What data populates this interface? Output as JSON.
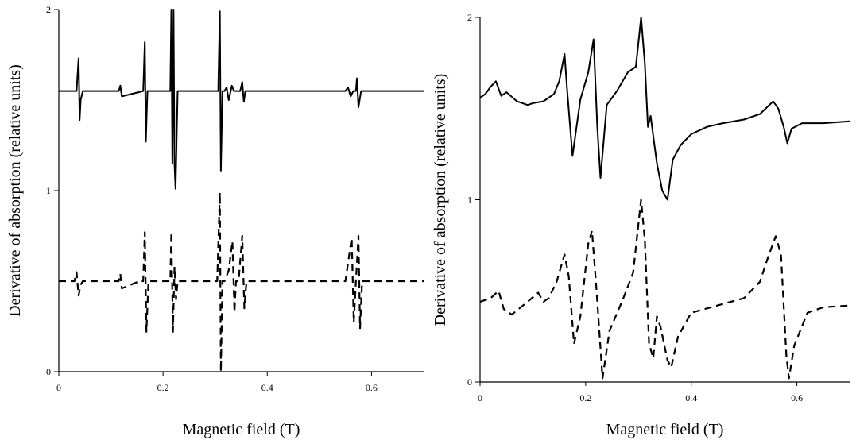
{
  "chart_data": [
    {
      "type": "line",
      "xlabel": "Magnetic field (T)",
      "ylabel": "Derivative of absorption (relative units)",
      "xlim": [
        0,
        0.7
      ],
      "ylim": [
        0,
        2
      ],
      "xticks": [
        "0",
        "0.2",
        "0.4",
        "0.6"
      ],
      "yticks": [
        "0",
        "1",
        "2"
      ],
      "grid": false,
      "series": [
        {
          "style": "solid",
          "x": [
            0,
            0.034,
            0.038,
            0.04,
            0.042,
            0.046,
            0.115,
            0.118,
            0.121,
            0.162,
            0.165,
            0.167,
            0.17,
            0.214,
            0.216,
            0.218,
            0.22,
            0.222,
            0.224,
            0.228,
            0.306,
            0.309,
            0.311,
            0.314,
            0.318,
            0.322,
            0.326,
            0.332,
            0.336,
            0.348,
            0.352,
            0.355,
            0.358,
            0.365,
            0.55,
            0.555,
            0.56,
            0.565,
            0.57,
            0.572,
            0.575,
            0.58,
            0.7
          ],
          "y": [
            1.55,
            1.55,
            1.73,
            1.39,
            1.5,
            1.55,
            1.55,
            1.58,
            1.52,
            1.55,
            1.82,
            1.27,
            1.55,
            1.55,
            2.0,
            1.15,
            2.0,
            1.14,
            1.01,
            1.55,
            1.55,
            1.99,
            1.11,
            1.55,
            1.55,
            1.57,
            1.5,
            1.58,
            1.55,
            1.55,
            1.6,
            1.49,
            1.55,
            1.55,
            1.55,
            1.57,
            1.52,
            1.55,
            1.55,
            1.62,
            1.46,
            1.55,
            1.55
          ]
        },
        {
          "style": "dashed",
          "x": [
            0,
            0.03,
            0.034,
            0.038,
            0.042,
            0.046,
            0.115,
            0.118,
            0.121,
            0.155,
            0.162,
            0.165,
            0.168,
            0.172,
            0.214,
            0.216,
            0.219,
            0.222,
            0.225,
            0.228,
            0.304,
            0.309,
            0.311,
            0.314,
            0.318,
            0.326,
            0.333,
            0.337,
            0.34,
            0.345,
            0.352,
            0.356,
            0.36,
            0.365,
            0.55,
            0.562,
            0.566,
            0.57,
            0.575,
            0.578,
            0.582,
            0.7
          ],
          "y": [
            0.5,
            0.5,
            0.55,
            0.42,
            0.48,
            0.5,
            0.5,
            0.54,
            0.46,
            0.5,
            0.5,
            0.77,
            0.22,
            0.5,
            0.5,
            0.77,
            0.22,
            0.58,
            0.4,
            0.5,
            0.5,
            0.99,
            0.0,
            0.5,
            0.5,
            0.56,
            0.72,
            0.33,
            0.5,
            0.5,
            0.75,
            0.35,
            0.5,
            0.5,
            0.5,
            0.74,
            0.27,
            0.5,
            0.75,
            0.24,
            0.5,
            0.5
          ]
        }
      ]
    },
    {
      "type": "line",
      "xlabel": "Magnetic field (T)",
      "ylabel": "Derivative of absorption (relative units)",
      "xlim": [
        0,
        0.7
      ],
      "ylim": [
        0,
        2
      ],
      "xticks": [
        "0",
        "0.2",
        "0.4",
        "0.6"
      ],
      "yticks": [
        "0",
        "1",
        "2"
      ],
      "grid": false,
      "series": [
        {
          "style": "solid",
          "x": [
            0,
            0.01,
            0.02,
            0.03,
            0.04,
            0.05,
            0.07,
            0.09,
            0.1,
            0.12,
            0.14,
            0.15,
            0.16,
            0.165,
            0.175,
            0.19,
            0.205,
            0.215,
            0.222,
            0.228,
            0.24,
            0.26,
            0.28,
            0.295,
            0.305,
            0.312,
            0.318,
            0.323,
            0.328,
            0.335,
            0.345,
            0.355,
            0.365,
            0.38,
            0.4,
            0.43,
            0.46,
            0.5,
            0.53,
            0.555,
            0.565,
            0.575,
            0.582,
            0.59,
            0.61,
            0.65,
            0.7
          ],
          "y": [
            1.56,
            1.58,
            1.62,
            1.65,
            1.57,
            1.59,
            1.54,
            1.52,
            1.53,
            1.54,
            1.58,
            1.65,
            1.8,
            1.6,
            1.24,
            1.55,
            1.7,
            1.88,
            1.4,
            1.12,
            1.52,
            1.6,
            1.7,
            1.73,
            2.0,
            1.75,
            1.4,
            1.46,
            1.35,
            1.2,
            1.05,
            1.0,
            1.22,
            1.3,
            1.36,
            1.4,
            1.42,
            1.44,
            1.47,
            1.54,
            1.5,
            1.4,
            1.31,
            1.39,
            1.42,
            1.42,
            1.43
          ]
        },
        {
          "style": "dashed",
          "x": [
            0,
            0.02,
            0.035,
            0.045,
            0.06,
            0.09,
            0.11,
            0.12,
            0.13,
            0.145,
            0.16,
            0.168,
            0.178,
            0.19,
            0.205,
            0.212,
            0.22,
            0.232,
            0.245,
            0.27,
            0.29,
            0.305,
            0.312,
            0.32,
            0.328,
            0.335,
            0.342,
            0.355,
            0.362,
            0.375,
            0.4,
            0.45,
            0.5,
            0.53,
            0.545,
            0.56,
            0.57,
            0.58,
            0.585,
            0.595,
            0.62,
            0.65,
            0.7
          ],
          "y": [
            0.44,
            0.46,
            0.5,
            0.4,
            0.37,
            0.44,
            0.49,
            0.44,
            0.46,
            0.55,
            0.7,
            0.58,
            0.21,
            0.36,
            0.76,
            0.83,
            0.53,
            0.02,
            0.28,
            0.45,
            0.6,
            1.0,
            0.78,
            0.21,
            0.13,
            0.36,
            0.3,
            0.12,
            0.08,
            0.25,
            0.38,
            0.42,
            0.46,
            0.55,
            0.68,
            0.8,
            0.7,
            0.15,
            0.02,
            0.2,
            0.38,
            0.41,
            0.42
          ]
        }
      ]
    }
  ]
}
